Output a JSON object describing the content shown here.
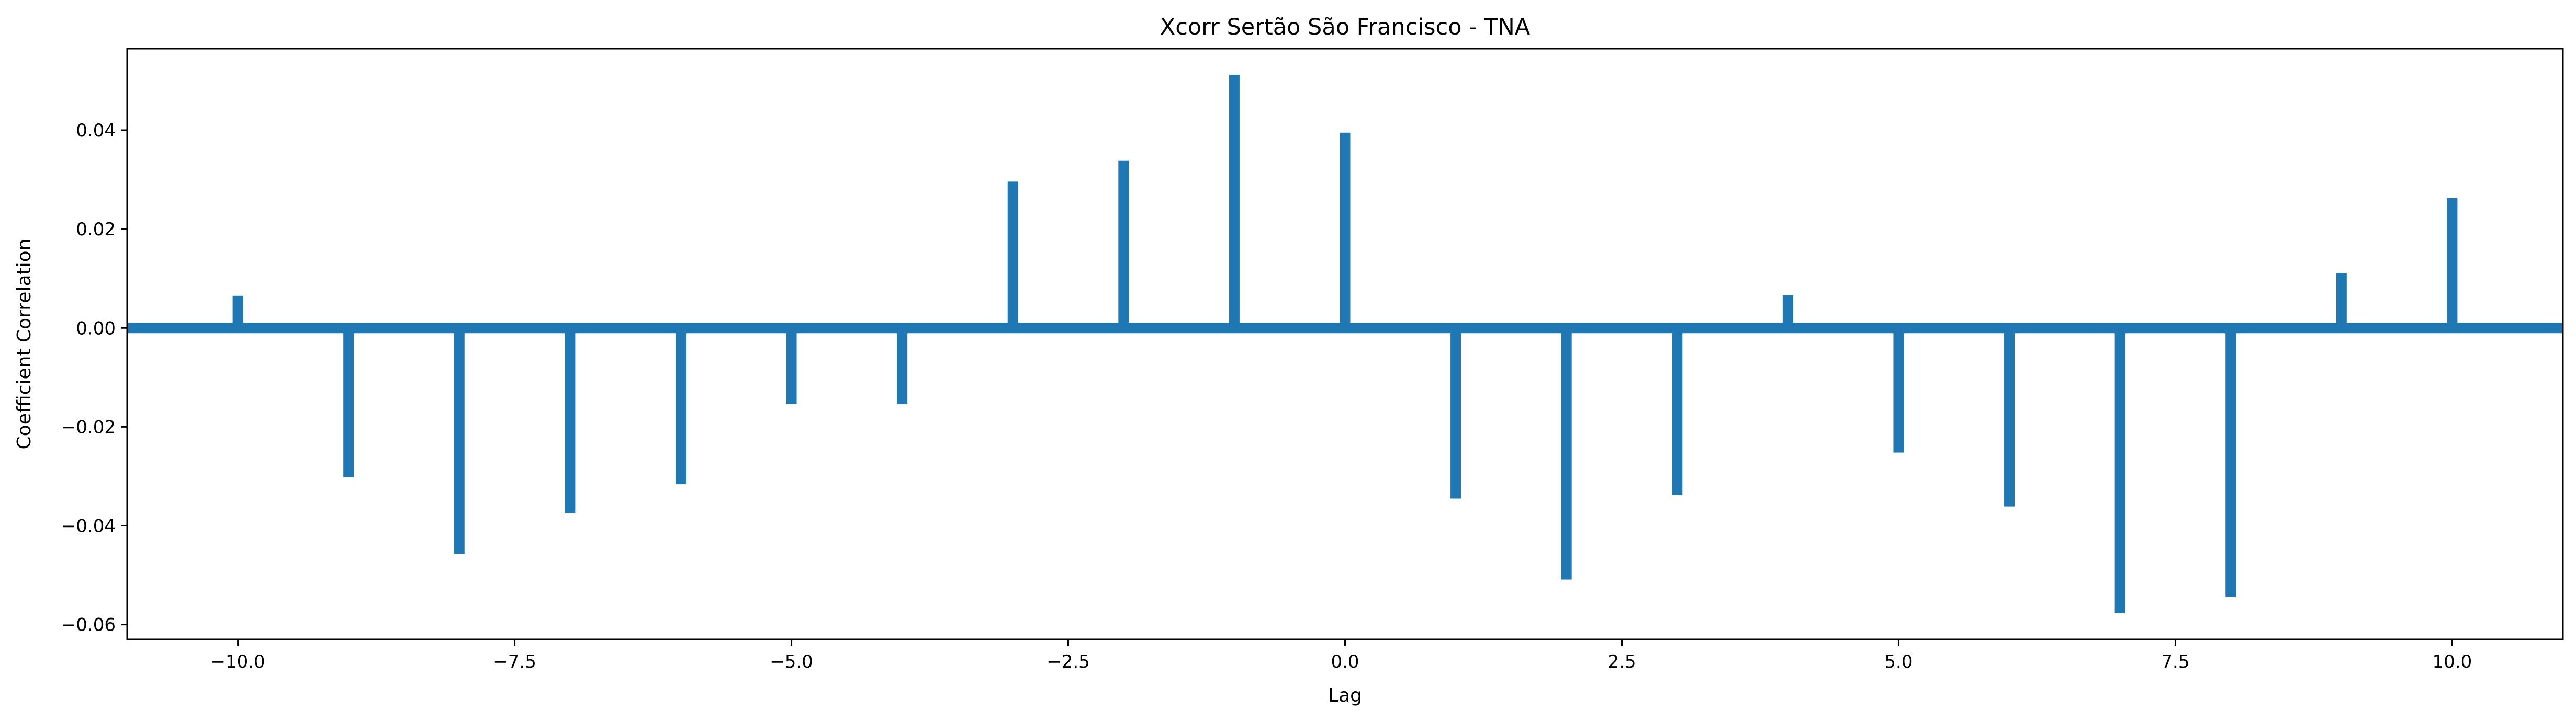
{
  "chart_data": {
    "type": "bar",
    "title": "Xcorr Sertão São Francisco - TNA",
    "xlabel": "Lag",
    "ylabel": "Coefficient Correlation",
    "xlim": [
      -11,
      11
    ],
    "ylim": [
      -0.063,
      0.0565
    ],
    "xticks": [
      -10.0,
      -7.5,
      -5.0,
      -2.5,
      0.0,
      2.5,
      5.0,
      7.5,
      10.0
    ],
    "xtick_labels": [
      "−10.0",
      "−7.5",
      "−5.0",
      "−2.5",
      "0.0",
      "2.5",
      "5.0",
      "7.5",
      "10.0"
    ],
    "yticks": [
      -0.06,
      -0.04,
      -0.02,
      0.0,
      0.02,
      0.04
    ],
    "ytick_labels": [
      "−0.06",
      "−0.04",
      "−0.02",
      "0.00",
      "0.02",
      "0.04"
    ],
    "grid": false,
    "color": "#1f77b4",
    "baseline": 0,
    "x": [
      -10,
      -9,
      -8,
      -7,
      -6,
      -5,
      -4,
      -3,
      -2,
      -1,
      0,
      1,
      2,
      3,
      4,
      5,
      6,
      7,
      8,
      9,
      10
    ],
    "values": [
      0.0065,
      -0.0302,
      -0.0457,
      -0.0375,
      -0.0316,
      -0.0154,
      -0.0154,
      0.0296,
      0.0339,
      0.0512,
      0.0395,
      -0.0345,
      -0.0509,
      -0.0338,
      0.0066,
      -0.0252,
      -0.0361,
      -0.0577,
      -0.0544,
      0.0111,
      0.0263
    ]
  }
}
